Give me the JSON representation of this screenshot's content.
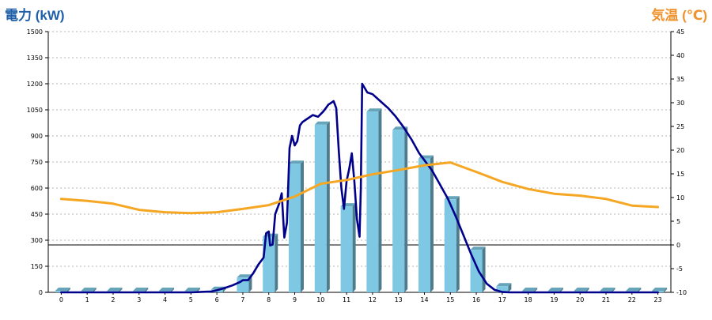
{
  "chart_data": {
    "type": "bar",
    "left_axis_label": "電力 (kW)",
    "right_axis_label": "気温 (℃)",
    "categories": [
      "0",
      "1",
      "2",
      "3",
      "4",
      "5",
      "6",
      "7",
      "8",
      "9",
      "10",
      "11",
      "12",
      "13",
      "14",
      "15",
      "16",
      "17",
      "18",
      "19",
      "20",
      "21",
      "22",
      "23"
    ],
    "y_left_ticks": [
      "0",
      "150",
      "300",
      "450",
      "600",
      "750",
      "900",
      "1050",
      "1200",
      "1350",
      "1500"
    ],
    "y_right_ticks": [
      "-10",
      "-5",
      "0",
      "5",
      "10",
      "15",
      "20",
      "25",
      "30",
      "35",
      "40",
      "45"
    ],
    "ylim_left": [
      0,
      1500
    ],
    "ylim_right": [
      -10,
      45
    ],
    "grid": true,
    "series": [
      {
        "kind": "bar",
        "axis": "left",
        "color": "#7ec8e3",
        "values": [
          0,
          0,
          0,
          0,
          0,
          0,
          15,
          85,
          320,
          740,
          965,
          495,
          1040,
          935,
          770,
          535,
          245,
          35,
          0,
          0,
          0,
          0,
          0,
          0
        ]
      },
      {
        "kind": "line",
        "axis": "left",
        "color": "#00008b",
        "x": [
          0,
          1,
          2,
          3,
          4,
          5,
          5.8,
          6,
          6.3,
          6.6,
          6.9,
          7,
          7.2,
          7.4,
          7.6,
          7.8,
          7.9,
          8,
          8.05,
          8.15,
          8.25,
          8.4,
          8.5,
          8.6,
          8.7,
          8.8,
          8.9,
          9,
          9.1,
          9.2,
          9.3,
          9.5,
          9.7,
          9.9,
          10.1,
          10.2,
          10.3,
          10.5,
          10.6,
          10.7,
          10.8,
          10.9,
          11,
          11.1,
          11.2,
          11.3,
          11.4,
          11.5,
          11.55,
          11.6,
          11.8,
          12,
          12.3,
          12.6,
          12.9,
          13.2,
          13.5,
          13.8,
          14,
          14.3,
          14.6,
          14.9,
          15.2,
          15.5,
          15.8,
          16.1,
          16.4,
          16.7,
          17,
          17.3,
          18,
          19,
          20,
          21,
          22,
          23
        ],
        "values": [
          0,
          0,
          0,
          0,
          0,
          0,
          5,
          12,
          25,
          40,
          60,
          70,
          70,
          110,
          160,
          200,
          340,
          350,
          270,
          275,
          450,
          510,
          570,
          315,
          400,
          830,
          900,
          845,
          870,
          960,
          980,
          1000,
          1020,
          1010,
          1040,
          1060,
          1080,
          1100,
          1060,
          810,
          600,
          480,
          640,
          710,
          800,
          640,
          420,
          320,
          600,
          1200,
          1150,
          1140,
          1100,
          1060,
          1010,
          950,
          880,
          800,
          760,
          700,
          620,
          540,
          440,
          330,
          220,
          120,
          50,
          15,
          2,
          0,
          0,
          0,
          0,
          0,
          0,
          0
        ]
      },
      {
        "kind": "line",
        "axis": "right",
        "color": "#f5a623",
        "x": [
          0,
          1,
          2,
          3,
          4,
          5,
          6,
          7,
          8,
          9,
          10,
          11,
          12,
          13,
          14,
          15,
          16,
          17,
          18,
          19,
          20,
          21,
          22,
          23
        ],
        "values": [
          9.7,
          9.3,
          8.7,
          7.4,
          6.9,
          6.7,
          6.9,
          7.6,
          8.4,
          10.2,
          12.9,
          13.7,
          14.9,
          15.8,
          16.8,
          17.4,
          15.4,
          13.3,
          11.8,
          10.8,
          10.4,
          9.7,
          8.3,
          8.0
        ]
      }
    ]
  }
}
